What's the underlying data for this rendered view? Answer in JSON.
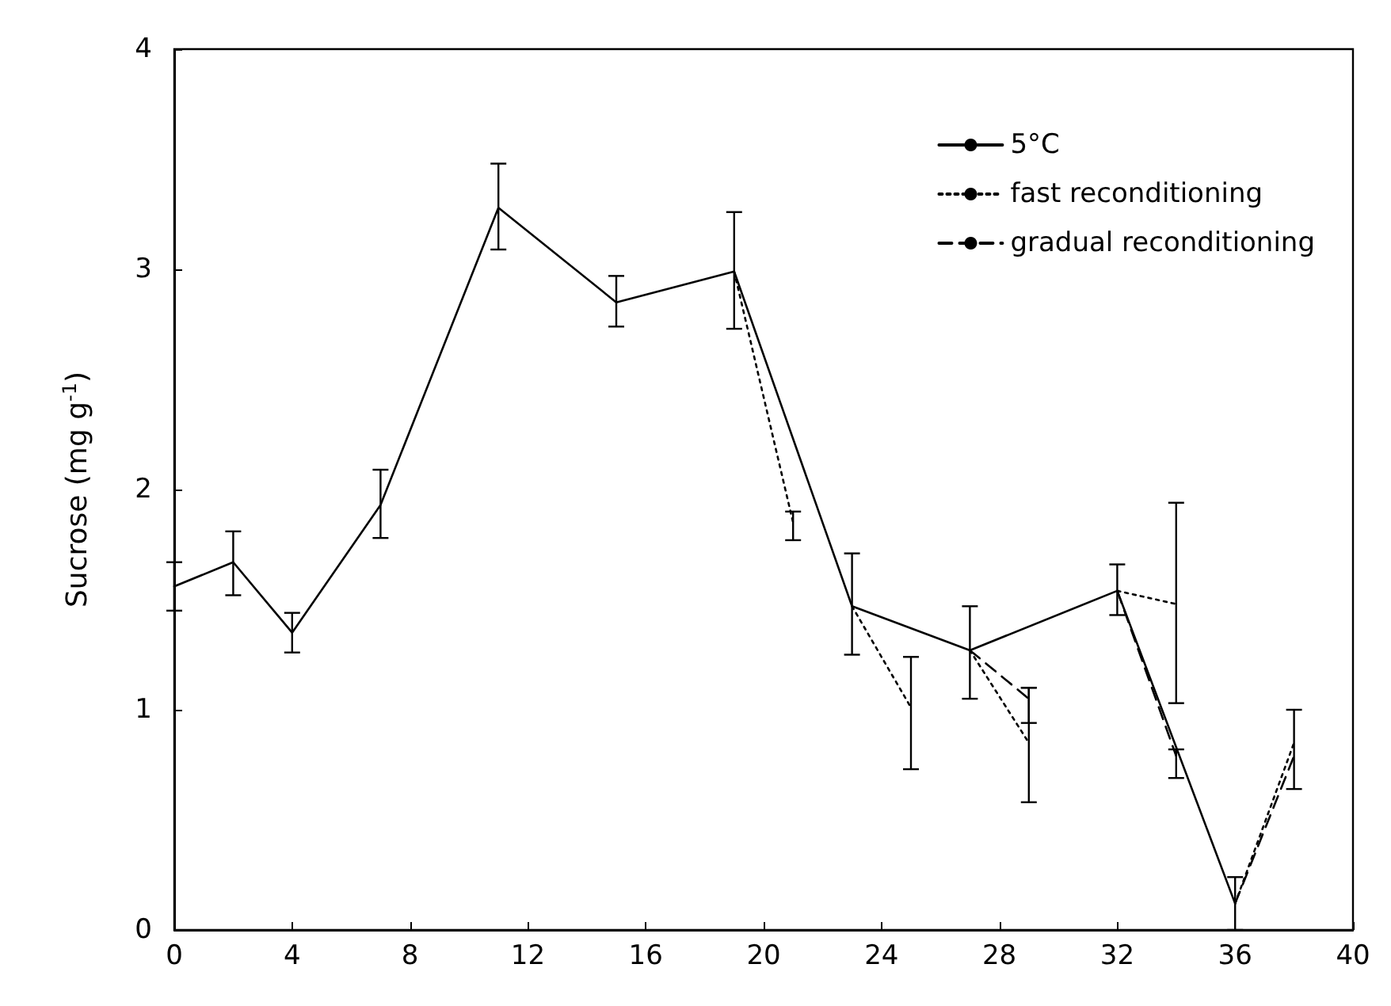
{
  "chart_data": {
    "type": "line",
    "ylabel": "Sucrose (mg g$^{-1}$)",
    "xlim": [
      0,
      40
    ],
    "xticks": [
      0,
      4,
      8,
      12,
      16,
      20,
      24,
      28,
      32,
      36,
      40
    ],
    "ylim": [
      0,
      4
    ],
    "yticks": [
      0,
      1,
      2,
      3,
      4
    ],
    "grid": false,
    "legend": "top right",
    "marker": "none",
    "series": [
      {
        "name": "5°C",
        "color": "#000000",
        "line_style": "solid",
        "x": [
          0,
          2,
          4,
          7,
          11,
          15,
          19,
          23,
          27,
          32,
          36
        ],
        "values": [
          1.56,
          1.67,
          1.35,
          1.93,
          3.28,
          2.85,
          2.99,
          1.47,
          1.27,
          1.54,
          0.12
        ],
        "errors": [
          [
            1.45,
            1.67
          ],
          [
            1.52,
            1.81
          ],
          [
            1.26,
            1.44
          ],
          [
            1.78,
            2.09
          ],
          [
            3.09,
            3.48
          ],
          [
            2.74,
            2.97
          ],
          [
            2.73,
            3.26
          ],
          [
            1.25,
            1.71
          ],
          [
            1.05,
            1.47
          ],
          [
            1.43,
            1.66
          ],
          [
            0,
            0.24
          ]
        ]
      },
      {
        "name": "fast reconditioning",
        "color": "#000000",
        "line_style": "dotted",
        "x": [
          19,
          21
        ],
        "values": [
          2.99,
          1.85
        ],
        "errors": [
          null,
          [
            1.77,
            1.9
          ]
        ]
      },
      {
        "color": "#000000",
        "line_style": "dotted",
        "x": [
          23,
          25
        ],
        "values": [
          1.47,
          1.01
        ],
        "errors": [
          null,
          [
            0.73,
            1.24
          ]
        ]
      },
      {
        "color": "#000000",
        "line_style": "dotted",
        "x": [
          27,
          29
        ],
        "values": [
          1.27,
          0.85
        ],
        "errors": [
          null,
          [
            0.58,
            1.1
          ]
        ]
      },
      {
        "color": "#000000",
        "line_style": "dotted",
        "x": [
          32,
          34
        ],
        "values": [
          1.54,
          1.48
        ],
        "errors": [
          null,
          [
            1.03,
            1.94
          ]
        ]
      },
      {
        "color": "#000000",
        "line_style": "dotted",
        "x": [
          36,
          38
        ],
        "values": [
          0.12,
          0.85
        ],
        "errors": [
          null,
          [
            0.64,
            1.0
          ]
        ]
      },
      {
        "name": "gradual reconditioning",
        "color": "#000000",
        "line_style": "dashed",
        "x": [
          27,
          29
        ],
        "values": [
          1.27,
          1.05
        ],
        "errors": [
          null,
          [
            0.94,
            1.1
          ]
        ]
      },
      {
        "color": "#000000",
        "line_style": "dashed",
        "x": [
          32,
          34
        ],
        "values": [
          1.54,
          0.79
        ],
        "errors": [
          null,
          [
            0.69,
            0.82
          ]
        ]
      },
      {
        "color": "#000000",
        "line_style": "dashed",
        "x": [
          36,
          38
        ],
        "values": [
          0.12,
          0.79
        ]
      }
    ]
  }
}
